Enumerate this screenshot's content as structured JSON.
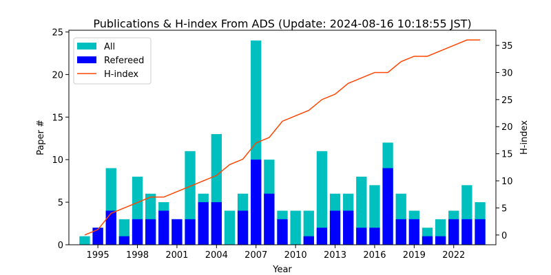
{
  "chart_data": {
    "type": "bar",
    "title": "Publications & H-index From ADS (Update: 2024-08-16 10:18:55 JST)",
    "xlabel": "Year",
    "ylabel": "Paper #",
    "y2label": "H-index",
    "xlim": [
      1992.8,
      2025.2
    ],
    "ylim": [
      0,
      25.2
    ],
    "y2lim": [
      -1.8,
      37.8
    ],
    "xticks": [
      1995,
      1998,
      2001,
      2004,
      2007,
      2010,
      2013,
      2016,
      2019,
      2022
    ],
    "yticks": [
      0,
      5,
      10,
      15,
      20,
      25
    ],
    "y2ticks": [
      0,
      5,
      10,
      15,
      20,
      25,
      30,
      35
    ],
    "years": [
      1994,
      1995,
      1996,
      1997,
      1998,
      1999,
      2000,
      2001,
      2002,
      2003,
      2004,
      2005,
      2006,
      2007,
      2008,
      2009,
      2010,
      2011,
      2012,
      2013,
      2014,
      2015,
      2016,
      2017,
      2018,
      2019,
      2020,
      2021,
      2022,
      2023,
      2024
    ],
    "series": [
      {
        "name": "All",
        "color": "#00bfbf",
        "axis": "left",
        "values": [
          1,
          2,
          9,
          3,
          8,
          6,
          5,
          3,
          11,
          6,
          13,
          4,
          6,
          24,
          10,
          4,
          4,
          4,
          11,
          6,
          6,
          8,
          7,
          12,
          6,
          4,
          2,
          3,
          4,
          7,
          5
        ]
      },
      {
        "name": "Refereed",
        "color": "#0000ff",
        "axis": "left",
        "values": [
          0,
          2,
          4,
          1,
          3,
          3,
          4,
          3,
          3,
          5,
          5,
          0,
          4,
          10,
          6,
          3,
          0,
          1,
          2,
          4,
          4,
          2,
          2,
          9,
          3,
          3,
          1,
          1,
          3,
          3,
          3
        ]
      },
      {
        "name": "H-index",
        "color": "#ff4500",
        "axis": "right",
        "type": "line",
        "values": [
          0,
          1,
          4,
          5,
          6,
          7,
          7,
          8,
          9,
          10,
          11,
          13,
          14,
          17,
          18,
          21,
          22,
          23,
          25,
          26,
          28,
          29,
          30,
          30,
          32,
          33,
          33,
          34,
          35,
          36,
          36
        ]
      }
    ],
    "legend": {
      "placement": "top-left",
      "entries": [
        "All",
        "Refereed",
        "H-index"
      ]
    },
    "grid": false
  }
}
